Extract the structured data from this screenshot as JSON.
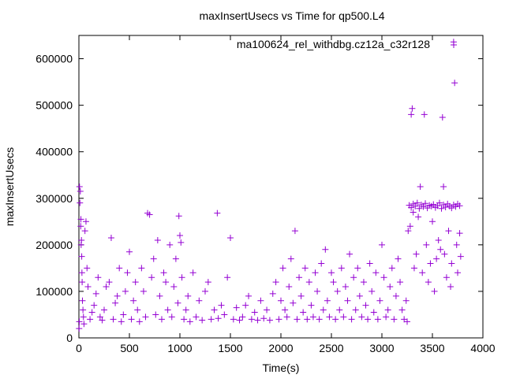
{
  "chart_data": {
    "type": "scatter",
    "title": "maxInsertUsecs vs Time for qp500.L4",
    "xlabel": "Time(s)",
    "ylabel": "maxInsertUsecs",
    "xlim": [
      0,
      4000
    ],
    "ylim": [
      0,
      650000
    ],
    "xticks": [
      0,
      500,
      1000,
      1500,
      2000,
      2500,
      3000,
      3500,
      4000
    ],
    "yticks": [
      0,
      100000,
      200000,
      300000,
      400000,
      500000,
      600000
    ],
    "grid": false,
    "legend_position": "top-right",
    "color": "#9400d3",
    "series": [
      {
        "name": "ma100624_rel_withdbg.cz12a_c32r128",
        "points": [
          [
            2,
            20000
          ],
          [
            4,
            35000
          ],
          [
            6,
            325000
          ],
          [
            10,
            290000
          ],
          [
            14,
            315000
          ],
          [
            18,
            240000
          ],
          [
            20,
            255000
          ],
          [
            22,
            200000
          ],
          [
            25,
            210000
          ],
          [
            28,
            175000
          ],
          [
            30,
            140000
          ],
          [
            32,
            120000
          ],
          [
            35,
            80000
          ],
          [
            40,
            60000
          ],
          [
            45,
            45000
          ],
          [
            50,
            30000
          ],
          [
            60,
            230000
          ],
          [
            70,
            250000
          ],
          [
            80,
            150000
          ],
          [
            90,
            110000
          ],
          [
            110,
            40000
          ],
          [
            130,
            55000
          ],
          [
            150,
            70000
          ],
          [
            170,
            95000
          ],
          [
            190,
            130000
          ],
          [
            210,
            45000
          ],
          [
            230,
            38000
          ],
          [
            250,
            60000
          ],
          [
            270,
            110000
          ],
          [
            300,
            120000
          ],
          [
            320,
            215000
          ],
          [
            340,
            40000
          ],
          [
            360,
            75000
          ],
          [
            380,
            90000
          ],
          [
            400,
            150000
          ],
          [
            420,
            35000
          ],
          [
            440,
            50000
          ],
          [
            460,
            100000
          ],
          [
            480,
            140000
          ],
          [
            500,
            185000
          ],
          [
            520,
            40000
          ],
          [
            540,
            80000
          ],
          [
            560,
            120000
          ],
          [
            580,
            60000
          ],
          [
            600,
            35000
          ],
          [
            620,
            150000
          ],
          [
            640,
            100000
          ],
          [
            660,
            45000
          ],
          [
            680,
            268000
          ],
          [
            700,
            265000
          ],
          [
            720,
            130000
          ],
          [
            740,
            170000
          ],
          [
            760,
            50000
          ],
          [
            780,
            210000
          ],
          [
            800,
            90000
          ],
          [
            820,
            40000
          ],
          [
            840,
            140000
          ],
          [
            860,
            120000
          ],
          [
            880,
            60000
          ],
          [
            900,
            200000
          ],
          [
            920,
            45000
          ],
          [
            940,
            110000
          ],
          [
            960,
            170000
          ],
          [
            980,
            75000
          ],
          [
            990,
            262000
          ],
          [
            1000,
            220000
          ],
          [
            1010,
            205000
          ],
          [
            1020,
            130000
          ],
          [
            1040,
            40000
          ],
          [
            1060,
            60000
          ],
          [
            1080,
            90000
          ],
          [
            1100,
            35000
          ],
          [
            1130,
            140000
          ],
          [
            1160,
            45000
          ],
          [
            1190,
            80000
          ],
          [
            1220,
            38000
          ],
          [
            1250,
            100000
          ],
          [
            1280,
            120000
          ],
          [
            1310,
            40000
          ],
          [
            1340,
            60000
          ],
          [
            1370,
            268000
          ],
          [
            1380,
            42000
          ],
          [
            1410,
            70000
          ],
          [
            1440,
            50000
          ],
          [
            1470,
            130000
          ],
          [
            1500,
            215000
          ],
          [
            1530,
            40000
          ],
          [
            1560,
            65000
          ],
          [
            1590,
            38000
          ],
          [
            1620,
            45000
          ],
          [
            1650,
            70000
          ],
          [
            1680,
            90000
          ],
          [
            1710,
            40000
          ],
          [
            1740,
            55000
          ],
          [
            1770,
            38000
          ],
          [
            1800,
            80000
          ],
          [
            1830,
            42000
          ],
          [
            1860,
            60000
          ],
          [
            1890,
            38000
          ],
          [
            1920,
            95000
          ],
          [
            1950,
            120000
          ],
          [
            1980,
            40000
          ],
          [
            2000,
            80000
          ],
          [
            2020,
            150000
          ],
          [
            2040,
            60000
          ],
          [
            2060,
            45000
          ],
          [
            2080,
            110000
          ],
          [
            2100,
            170000
          ],
          [
            2120,
            75000
          ],
          [
            2140,
            230000
          ],
          [
            2160,
            40000
          ],
          [
            2180,
            130000
          ],
          [
            2200,
            90000
          ],
          [
            2220,
            55000
          ],
          [
            2240,
            150000
          ],
          [
            2260,
            40000
          ],
          [
            2280,
            120000
          ],
          [
            2300,
            70000
          ],
          [
            2320,
            45000
          ],
          [
            2340,
            140000
          ],
          [
            2360,
            100000
          ],
          [
            2380,
            40000
          ],
          [
            2400,
            160000
          ],
          [
            2420,
            60000
          ],
          [
            2440,
            190000
          ],
          [
            2460,
            80000
          ],
          [
            2480,
            45000
          ],
          [
            2500,
            140000
          ],
          [
            2520,
            120000
          ],
          [
            2540,
            40000
          ],
          [
            2560,
            100000
          ],
          [
            2580,
            60000
          ],
          [
            2600,
            150000
          ],
          [
            2620,
            45000
          ],
          [
            2640,
            110000
          ],
          [
            2660,
            80000
          ],
          [
            2680,
            180000
          ],
          [
            2700,
            40000
          ],
          [
            2720,
            130000
          ],
          [
            2740,
            60000
          ],
          [
            2760,
            150000
          ],
          [
            2780,
            90000
          ],
          [
            2800,
            45000
          ],
          [
            2820,
            120000
          ],
          [
            2840,
            70000
          ],
          [
            2860,
            40000
          ],
          [
            2880,
            160000
          ],
          [
            2900,
            100000
          ],
          [
            2920,
            55000
          ],
          [
            2940,
            140000
          ],
          [
            2960,
            40000
          ],
          [
            2980,
            80000
          ],
          [
            3000,
            200000
          ],
          [
            3020,
            130000
          ],
          [
            3040,
            45000
          ],
          [
            3060,
            60000
          ],
          [
            3080,
            110000
          ],
          [
            3100,
            150000
          ],
          [
            3120,
            40000
          ],
          [
            3140,
            90000
          ],
          [
            3160,
            170000
          ],
          [
            3180,
            120000
          ],
          [
            3200,
            60000
          ],
          [
            3220,
            40000
          ],
          [
            3240,
            80000
          ],
          [
            3250,
            35000
          ],
          [
            3260,
            230000
          ],
          [
            3280,
            240000
          ],
          [
            3290,
            480000
          ],
          [
            3300,
            493000
          ],
          [
            3310,
            270000
          ],
          [
            3320,
            150000
          ],
          [
            3340,
            180000
          ],
          [
            3360,
            260000
          ],
          [
            3380,
            325000
          ],
          [
            3400,
            140000
          ],
          [
            3420,
            480000
          ],
          [
            3440,
            200000
          ],
          [
            3460,
            120000
          ],
          [
            3480,
            160000
          ],
          [
            3500,
            250000
          ],
          [
            3520,
            100000
          ],
          [
            3540,
            170000
          ],
          [
            3560,
            210000
          ],
          [
            3580,
            190000
          ],
          [
            3600,
            474000
          ],
          [
            3610,
            325000
          ],
          [
            3620,
            180000
          ],
          [
            3640,
            130000
          ],
          [
            3660,
            230000
          ],
          [
            3680,
            110000
          ],
          [
            3690,
            160000
          ],
          [
            3710,
            636000
          ],
          [
            3720,
            548000
          ],
          [
            3740,
            200000
          ],
          [
            3750,
            140000
          ],
          [
            3770,
            225000
          ],
          [
            3780,
            175000
          ],
          [
            3270,
            285000
          ],
          [
            3290,
            280000
          ],
          [
            3310,
            288000
          ],
          [
            3330,
            283000
          ],
          [
            3350,
            290000
          ],
          [
            3370,
            278000
          ],
          [
            3390,
            286000
          ],
          [
            3410,
            282000
          ],
          [
            3430,
            289000
          ],
          [
            3450,
            279000
          ],
          [
            3470,
            285000
          ],
          [
            3490,
            283000
          ],
          [
            3510,
            287000
          ],
          [
            3530,
            280000
          ],
          [
            3550,
            284000
          ],
          [
            3570,
            290000
          ],
          [
            3590,
            278000
          ],
          [
            3610,
            286000
          ],
          [
            3630,
            281000
          ],
          [
            3650,
            288000
          ],
          [
            3670,
            283000
          ],
          [
            3690,
            279000
          ],
          [
            3710,
            286000
          ],
          [
            3730,
            282000
          ],
          [
            3750,
            288000
          ],
          [
            3770,
            284000
          ]
        ]
      }
    ]
  }
}
